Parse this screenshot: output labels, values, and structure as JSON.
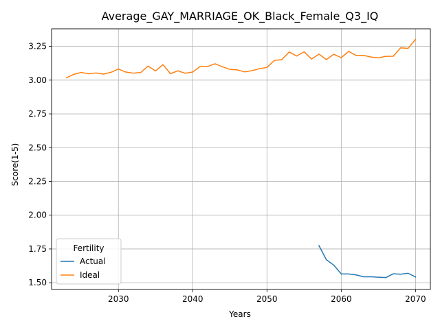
{
  "chart_data": {
    "type": "line",
    "title": "Average_GAY_MARRIAGE_OK_Black_Female_Q3_IQ",
    "xlabel": "Years",
    "ylabel": "Score(1-5)",
    "xlim": [
      2021,
      2072
    ],
    "ylim": [
      1.45,
      3.38
    ],
    "xticks": [
      2030,
      2040,
      2050,
      2060,
      2070
    ],
    "yticks": [
      1.5,
      1.75,
      2.0,
      2.25,
      2.5,
      2.75,
      3.0,
      3.25
    ],
    "xtick_labels": [
      "2030",
      "2040",
      "2050",
      "2060",
      "2070"
    ],
    "ytick_labels": [
      "1.50",
      "1.75",
      "2.00",
      "2.25",
      "2.50",
      "2.75",
      "3.00",
      "3.25"
    ],
    "grid": true,
    "legend": {
      "title": "Fertility",
      "placement": "lower-left"
    },
    "series": [
      {
        "name": "Actual",
        "color": "#1f77b4",
        "x": [
          2057,
          2058,
          2059,
          2060,
          2061,
          2062,
          2063,
          2064,
          2065,
          2066,
          2067,
          2068,
          2069,
          2070
        ],
        "y": [
          1.775,
          1.67,
          1.63,
          1.565,
          1.565,
          1.558,
          1.544,
          1.544,
          1.541,
          1.538,
          1.566,
          1.563,
          1.57,
          1.543
        ]
      },
      {
        "name": "Ideal",
        "color": "#ff7f0e",
        "x": [
          2023,
          2024,
          2025,
          2026,
          2027,
          2028,
          2029,
          2030,
          2031,
          2032,
          2033,
          2034,
          2035,
          2036,
          2037,
          2038,
          2039,
          2040,
          2041,
          2042,
          2043,
          2044,
          2045,
          2046,
          2047,
          2048,
          2049,
          2050,
          2051,
          2052,
          2053,
          2054,
          2055,
          2056,
          2057,
          2058,
          2059,
          2060,
          2061,
          2062,
          2063,
          2064,
          2065,
          2066,
          2067,
          2068,
          2069,
          2070
        ],
        "y": [
          3.017,
          3.043,
          3.057,
          3.047,
          3.053,
          3.045,
          3.058,
          3.082,
          3.06,
          3.052,
          3.056,
          3.104,
          3.068,
          3.115,
          3.048,
          3.069,
          3.051,
          3.06,
          3.101,
          3.101,
          3.121,
          3.099,
          3.08,
          3.076,
          3.061,
          3.07,
          3.085,
          3.094,
          3.146,
          3.152,
          3.209,
          3.178,
          3.21,
          3.156,
          3.193,
          3.152,
          3.192,
          3.166,
          3.213,
          3.183,
          3.183,
          3.171,
          3.165,
          3.176,
          3.177,
          3.239,
          3.235,
          3.302
        ]
      }
    ]
  }
}
